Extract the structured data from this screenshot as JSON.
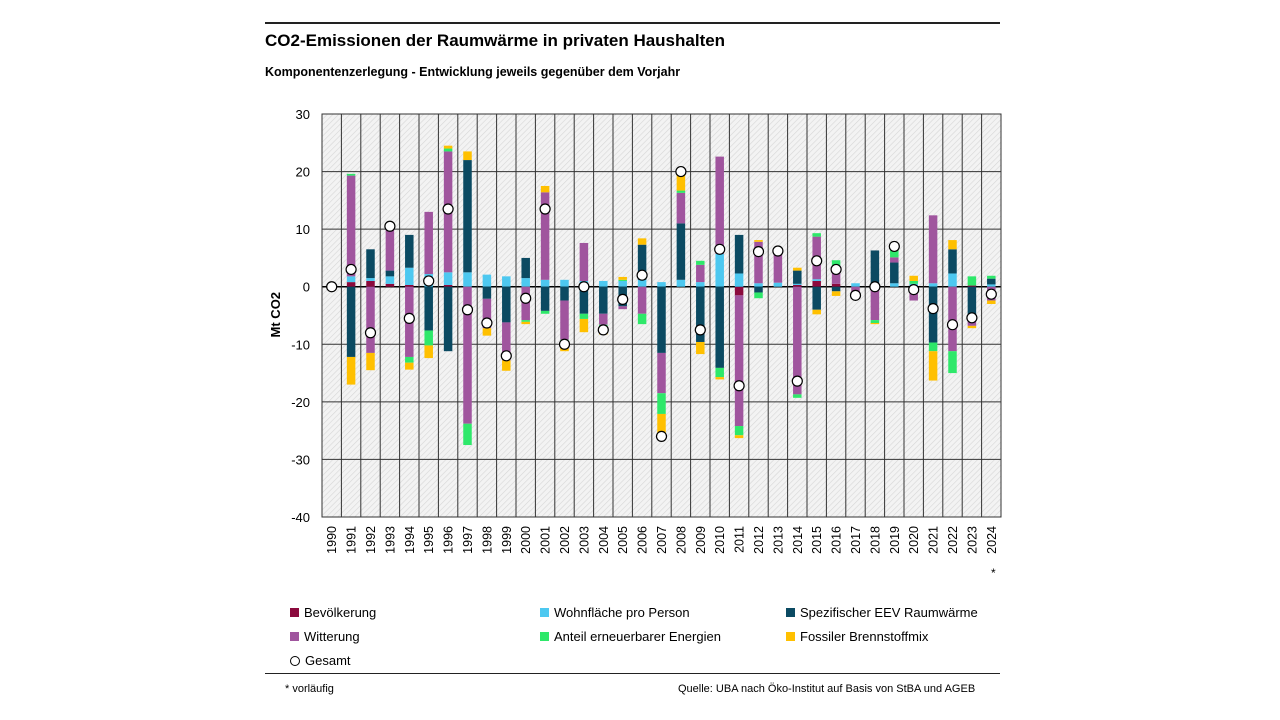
{
  "chart_data": {
    "type": "bar",
    "stacked": true,
    "title": "CO2-Emissionen der Raumwärme in privaten Haushalten",
    "subtitle": "Komponentenzerlegung  - Entwicklung jeweils gegenüber dem Vorjahr",
    "xlabel": "",
    "ylabel": "Mt CO2",
    "ylim": [
      -40,
      30
    ],
    "yticks": [
      30,
      20,
      10,
      0,
      -10,
      -20,
      -30,
      -40
    ],
    "grid": true,
    "legend_position": "bottom",
    "categories": [
      "1990",
      "1991",
      "1992",
      "1993",
      "1994",
      "1995",
      "1996",
      "1997",
      "1998",
      "1999",
      "2000",
      "2001",
      "2002",
      "2003",
      "2004",
      "2005",
      "2006",
      "2007",
      "2008",
      "2009",
      "2010",
      "2011",
      "2012",
      "2013",
      "2014",
      "2015",
      "2016",
      "2017",
      "2018",
      "2019",
      "2020",
      "2021",
      "2022",
      "2023",
      "2024"
    ],
    "category_note": {
      "2024": "*"
    },
    "series": [
      {
        "name": "Bevölkerung",
        "color": "#8b0a3d",
        "values": [
          0,
          0.8,
          1.0,
          0.5,
          0.3,
          0,
          0.3,
          0,
          0,
          0,
          0,
          0,
          0,
          0,
          0,
          0,
          0,
          0,
          0,
          0,
          0,
          -1.5,
          0,
          0,
          0.3,
          1.0,
          0.5,
          0,
          0,
          0,
          0,
          0,
          0,
          0.2,
          0
        ]
      },
      {
        "name": "Wohnfläche pro Person",
        "color": "#4dc8f0",
        "values": [
          0,
          1.0,
          0.5,
          1.3,
          3.0,
          2.2,
          2.2,
          2.5,
          2.1,
          1.8,
          1.5,
          1.2,
          1.2,
          1.0,
          1.0,
          1.0,
          1.2,
          0.8,
          1.2,
          0.8,
          5.7,
          2.3,
          0.6,
          0.7,
          0.2,
          0.3,
          0,
          0.6,
          0,
          0.6,
          0.5,
          0.6,
          2.3,
          0,
          0.4
        ]
      },
      {
        "name": "Spezifischer EEV Raumwärme",
        "color": "#0b4a62",
        "values": [
          0,
          -12.2,
          5.0,
          1.0,
          5.7,
          -7.6,
          -11.2,
          19.5,
          -2.1,
          -6.2,
          3.5,
          -4.2,
          -2.4,
          -4.7,
          -4.7,
          -3.4,
          6.1,
          -11.5,
          9.8,
          -9.6,
          -14.1,
          6.7,
          -1.0,
          0,
          2.3,
          -4.0,
          -0.8,
          0,
          6.3,
          3.6,
          0,
          -9.7,
          4.2,
          -5.8,
          1.0
        ]
      },
      {
        "name": "Witterung",
        "color": "#a0559e",
        "values": [
          0,
          17.5,
          -11.5,
          7.5,
          -12.2,
          10.8,
          21.0,
          -23.8,
          -5.1,
          -6.6,
          -5.8,
          15.2,
          -6.8,
          6.6,
          -1.9,
          -0.5,
          -4.7,
          -7.0,
          5.3,
          3.0,
          16.9,
          -22.7,
          7.2,
          5.5,
          -18.7,
          7.4,
          3.2,
          -2.1,
          -5.8,
          0.9,
          -2.4,
          11.8,
          -11.2,
          -1.0,
          -2.4
        ]
      },
      {
        "name": "Anteil erneuerbarer Energien",
        "color": "#2ee86a",
        "values": [
          0,
          0.3,
          0,
          0,
          -1.0,
          -2.6,
          0.5,
          -3.7,
          0,
          0,
          -0.3,
          -0.5,
          -0.3,
          -0.9,
          -0.3,
          0.2,
          -1.8,
          -3.6,
          0.4,
          0.7,
          -1.6,
          -1.6,
          -1.0,
          0,
          -0.6,
          0.6,
          0.9,
          0,
          -0.5,
          1.3,
          0.5,
          -1.5,
          -3.8,
          1.6,
          0.5
        ]
      },
      {
        "name": "Fossiler Brennstoffmix",
        "color": "#ffc000",
        "values": [
          0,
          -4.8,
          -3.0,
          0,
          -1.2,
          -2.2,
          0.5,
          1.5,
          -1.3,
          -1.8,
          -0.4,
          1.1,
          -1.7,
          -2.3,
          -1.4,
          0.5,
          1.1,
          -4.2,
          2.9,
          -2.1,
          -0.4,
          -0.5,
          0.3,
          0,
          0.5,
          -0.8,
          -0.8,
          0,
          -0.2,
          0.5,
          0.9,
          -5.1,
          1.6,
          -0.4,
          -0.6
        ]
      }
    ],
    "total": {
      "name": "Gesamt",
      "marker": "circle",
      "values": [
        0,
        3,
        -8,
        10.5,
        -5.5,
        1,
        13.5,
        -4,
        -6.3,
        -12,
        -2,
        13.5,
        -10,
        0,
        -7.5,
        -2.2,
        2,
        -26,
        20,
        -7.5,
        6.5,
        -17.2,
        6.1,
        6.2,
        -16.4,
        4.5,
        3,
        -1.5,
        0,
        7,
        -0.5,
        -3.8,
        -6.6,
        -5.4,
        -1.3
      ]
    }
  },
  "footer": {
    "note": "* vorläufig",
    "source": "Quelle: UBA nach Öko-Institut auf Basis von StBA und AGEB"
  }
}
